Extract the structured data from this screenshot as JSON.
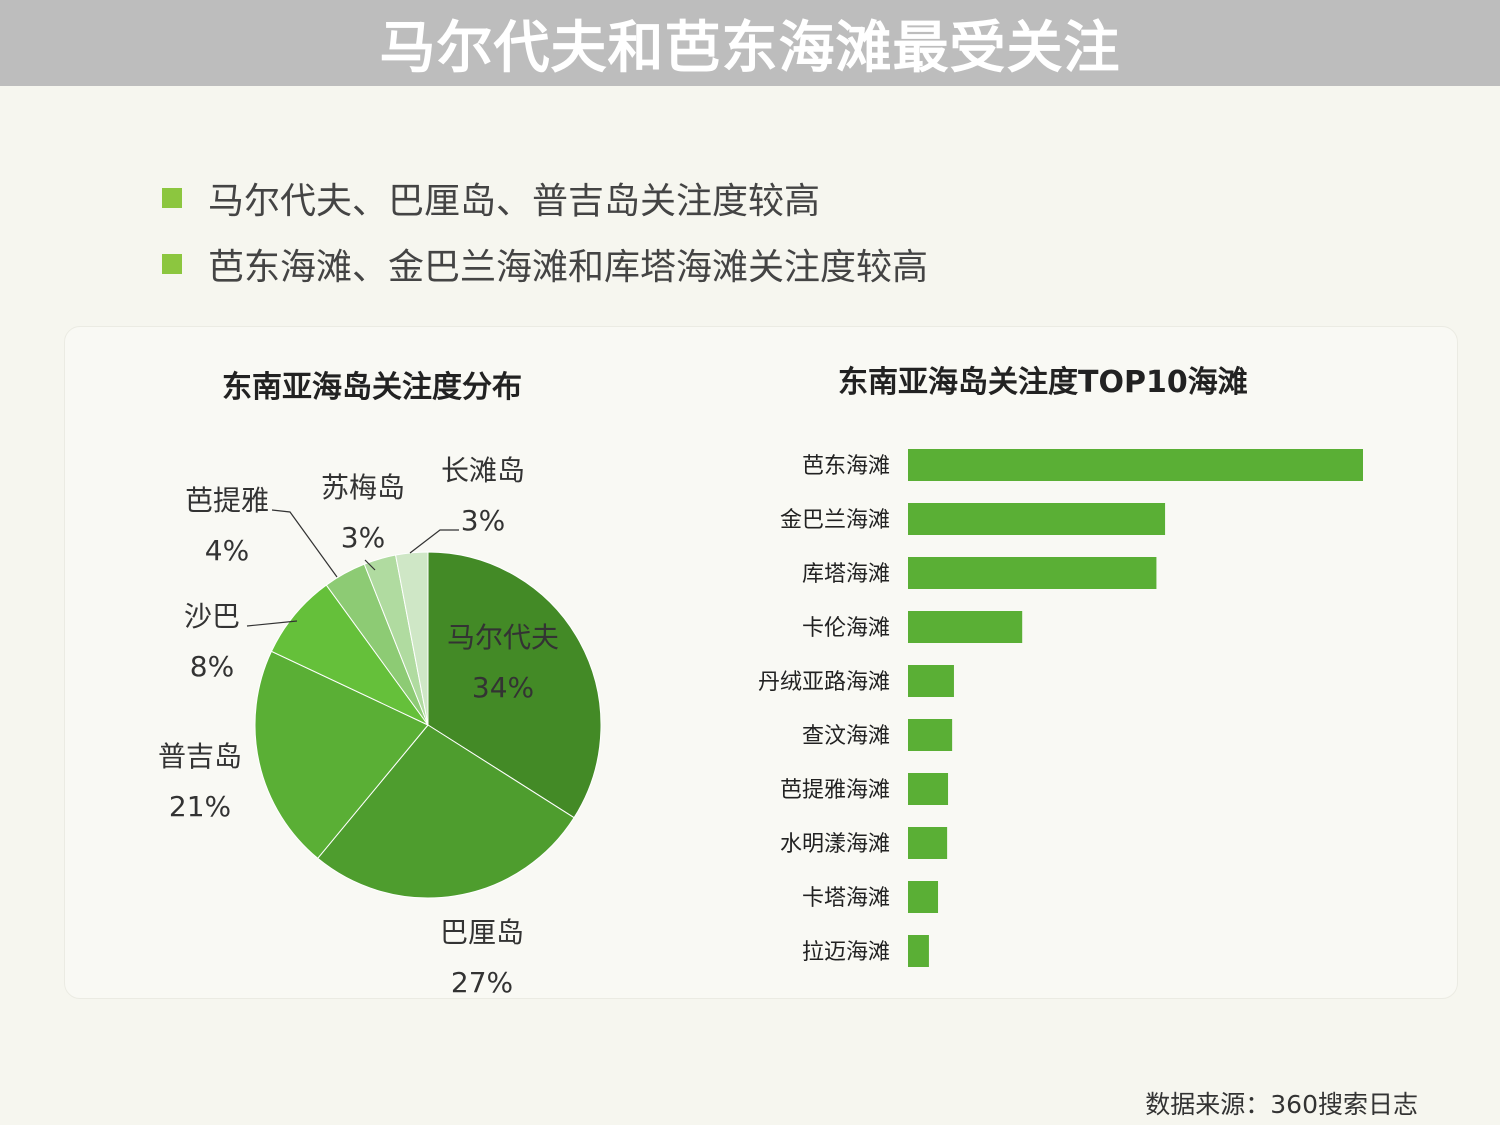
{
  "header": {
    "title": "马尔代夫和芭东海滩最受关注"
  },
  "bullets": [
    "马尔代夫、巴厘岛、普吉岛关注度较高",
    "芭东海滩、金巴兰海滩和库塔海滩关注度较高"
  ],
  "colors": {
    "accent": "#8cc63f",
    "bar": "#5aaf35"
  },
  "chart_data": [
    {
      "type": "pie",
      "title": "东南亚海岛关注度分布",
      "slices": [
        {
          "label": "马尔代夫",
          "value": 34,
          "display": "34%",
          "color": "#438a26"
        },
        {
          "label": "巴厘岛",
          "value": 27,
          "display": "27%",
          "color": "#4e9d2e"
        },
        {
          "label": "普吉岛",
          "value": 21,
          "display": "21%",
          "color": "#5aaf35"
        },
        {
          "label": "沙巴",
          "value": 8,
          "display": "8%",
          "color": "#65c03a"
        },
        {
          "label": "芭提雅",
          "value": 4,
          "display": "4%",
          "color": "#8dcb74"
        },
        {
          "label": "苏梅岛",
          "value": 3,
          "display": "3%",
          "color": "#b0dba0"
        },
        {
          "label": "长滩岛",
          "value": 3,
          "display": "3%",
          "color": "#cfe7c6"
        }
      ]
    },
    {
      "type": "bar",
      "orientation": "horizontal",
      "title": "东南亚海岛关注度TOP10海滩",
      "categories": [
        "芭东海滩",
        "金巴兰海滩",
        "库塔海滩",
        "卡伦海滩",
        "丹绒亚路海滩",
        "查汶海滩",
        "芭提雅海滩",
        "水明漾海滩",
        "卡塔海滩",
        "拉迈海滩"
      ],
      "values": [
        100,
        56.5,
        54.6,
        25.1,
        10.1,
        9.7,
        8.8,
        8.6,
        6.6,
        4.6
      ]
    }
  ],
  "source": "数据来源：360搜索日志"
}
